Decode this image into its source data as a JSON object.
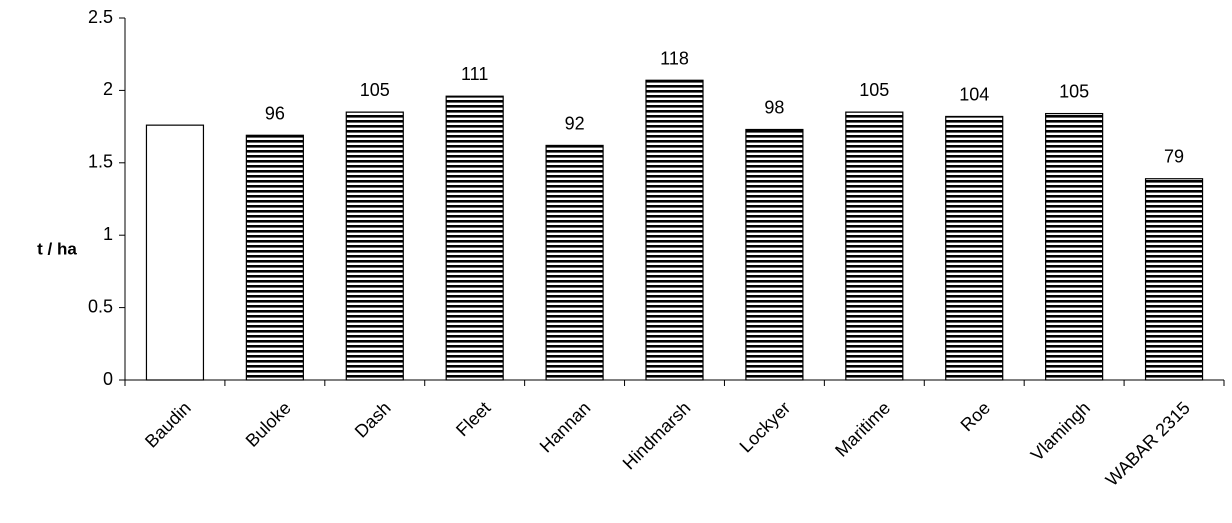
{
  "chart_data": {
    "type": "bar",
    "title": "",
    "xlabel": "",
    "ylabel": "t / ha",
    "ylim": [
      0,
      2.5
    ],
    "yticks": [
      "0",
      "0.5",
      "1",
      "1.5",
      "2",
      "2.5"
    ],
    "ytick_values": [
      0,
      0.5,
      1,
      1.5,
      2,
      2.5
    ],
    "grid": false,
    "legend": "none",
    "categories": [
      "Baudin",
      "Buloke",
      "Dash",
      "Fleet",
      "Hannan",
      "Hindmarsh",
      "Lockyer",
      "Maritime",
      "Roe",
      "Vlamingh",
      "WABAR 2315"
    ],
    "values": [
      1.76,
      1.69,
      1.85,
      1.96,
      1.62,
      2.07,
      1.73,
      1.85,
      1.82,
      1.84,
      1.39
    ],
    "data_labels": [
      "",
      "96",
      "105",
      "111",
      "92",
      "118",
      "98",
      "105",
      "104",
      "105",
      "79"
    ],
    "bar_styles": [
      "plain",
      "hatched",
      "hatched",
      "hatched",
      "hatched",
      "hatched",
      "hatched",
      "hatched",
      "hatched",
      "hatched",
      "hatched"
    ],
    "colors": {
      "bar_fill_plain": "#ffffff",
      "bar_stripe": "#000000",
      "axis": "#000000"
    }
  }
}
